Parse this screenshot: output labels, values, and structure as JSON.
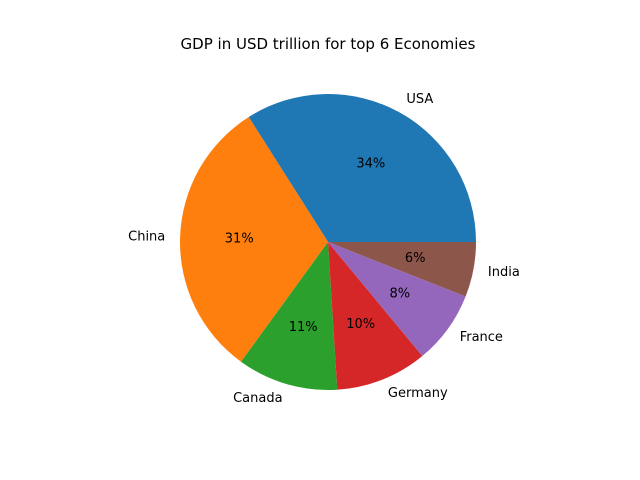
{
  "chart_data": {
    "type": "pie",
    "title": "GDP in USD trillion for top 6 Economies",
    "categories": [
      "USA",
      "China",
      "Canada",
      "Germany",
      "France",
      "India"
    ],
    "values": [
      34,
      31,
      11,
      10,
      8,
      6
    ],
    "percent_labels": [
      "34%",
      "31%",
      "11%",
      "10%",
      "8%",
      "6%"
    ],
    "colors": [
      "#1f77b4",
      "#ff7f0e",
      "#2ca02c",
      "#d62728",
      "#9467bd",
      "#8c564b"
    ],
    "start_angle_deg": 0,
    "direction": "counterclockwise",
    "legend": "none"
  }
}
